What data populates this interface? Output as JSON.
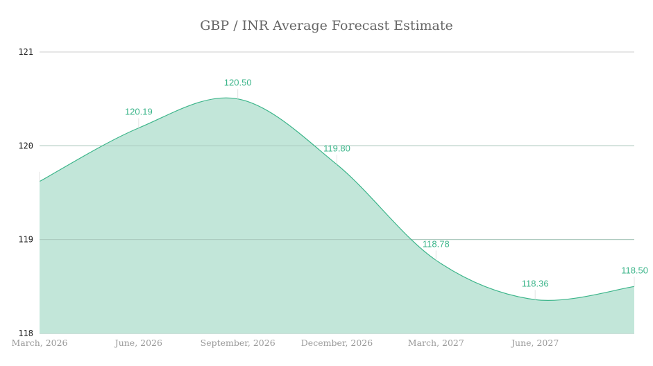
{
  "chart_data": {
    "type": "area",
    "title": "GBP / INR Average Forecast Estimate",
    "xlabel": "",
    "ylabel": "",
    "categories": [
      "March, 2026",
      "June, 2026",
      "September, 2026",
      "December, 2026",
      "March, 2027",
      "June, 2027",
      ""
    ],
    "values": [
      119.62,
      120.19,
      120.5,
      119.8,
      118.78,
      118.36,
      118.5
    ],
    "data_labels": [
      null,
      "120.19",
      "120.50",
      "119.80",
      "118.78",
      "118.36",
      "118.50"
    ],
    "ylim": [
      118,
      121
    ],
    "yticks": [
      "118",
      "119",
      "120",
      "121"
    ],
    "grid": true,
    "legend": "none",
    "colors": {
      "line": "#3cb58a",
      "fill": "#c2e6d9",
      "label": "#3cb58a",
      "grid": "#cccccc"
    }
  }
}
